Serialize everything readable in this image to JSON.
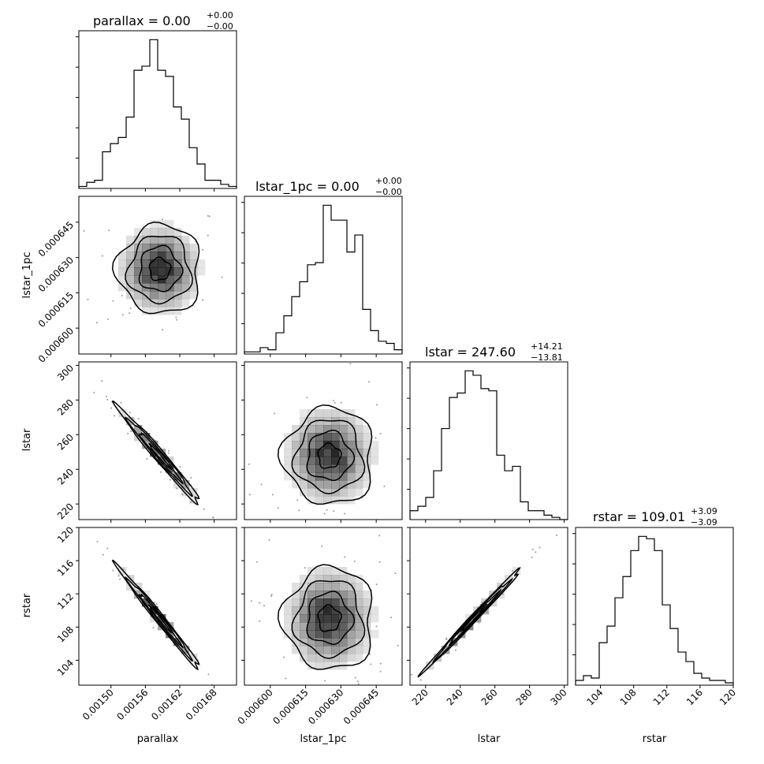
{
  "chart_data": {
    "type": "corner",
    "parameters": [
      "parallax",
      "lstar_1pc",
      "lstar",
      "rstar"
    ],
    "axis_labels": [
      "parallax",
      "lstar_1pc",
      "lstar",
      "rstar"
    ],
    "titles": [
      {
        "param": "parallax",
        "base": "parallax = 0.00",
        "plus": "+0.00",
        "minus": "−0.00"
      },
      {
        "param": "lstar_1pc",
        "base": "lstar_1pc = 0.00",
        "plus": "+0.00",
        "minus": "−0.00"
      },
      {
        "param": "lstar",
        "base": "lstar = 247.60",
        "plus": "+14.21",
        "minus": "−13.81"
      },
      {
        "param": "rstar",
        "base": "rstar = 109.01",
        "plus": "+3.09",
        "minus": "−3.09"
      }
    ],
    "ranges": [
      [
        0.001444,
        0.001719
      ],
      [
        0.000589,
        0.000656
      ],
      [
        211,
        302
      ],
      [
        101.0,
        120.0
      ]
    ],
    "ticks": [
      {
        "values": [
          0.0015,
          0.00156,
          0.00162,
          0.00168
        ],
        "labels": [
          "0.00150",
          "0.00156",
          "0.00162",
          "0.00168"
        ]
      },
      {
        "values": [
          0.0006,
          0.000615,
          0.00063,
          0.000645
        ],
        "labels": [
          "0.000600",
          "0.000615",
          "0.000630",
          "0.000645"
        ]
      },
      {
        "values": [
          220,
          240,
          260,
          280,
          300
        ],
        "labels": [
          "220",
          "240",
          "260",
          "280",
          "300"
        ]
      },
      {
        "values": [
          104,
          108,
          112,
          116,
          120
        ],
        "labels": [
          "104",
          "108",
          "112",
          "116",
          "120"
        ]
      }
    ],
    "histograms": [
      {
        "param": "parallax",
        "bins": 20,
        "counts": [
          1,
          3,
          4,
          18,
          22,
          25,
          35,
          58,
          60,
          73,
          58,
          55,
          40,
          34,
          20,
          12,
          4,
          4,
          2,
          1
        ]
      },
      {
        "param": "lstar_1pc",
        "bins": 20,
        "counts": [
          1,
          1,
          3,
          2,
          10,
          18,
          27,
          34,
          42,
          43,
          70,
          63,
          63,
          48,
          56,
          21,
          11,
          6,
          5,
          2
        ]
      },
      {
        "param": "lstar",
        "bins": 20,
        "counts": [
          4,
          6,
          10,
          22,
          41,
          55,
          57,
          67,
          65,
          59,
          58,
          29,
          22,
          24,
          8,
          4,
          4,
          2,
          1,
          0
        ]
      },
      {
        "param": "rstar",
        "bins": 20,
        "counts": [
          2,
          4,
          3,
          18,
          25,
          37,
          46,
          57,
          63,
          62,
          57,
          34,
          24,
          14,
          10,
          5,
          3,
          2,
          2,
          1
        ]
      }
    ],
    "pairs": [
      {
        "x": "parallax",
        "y": "lstar_1pc",
        "mean": [
          0.001585,
          0.000625
        ],
        "sd": [
          3.6e-05,
          9.5e-06
        ],
        "corr": 0.0
      },
      {
        "x": "parallax",
        "y": "lstar",
        "mean": [
          0.001585,
          247.6
        ],
        "sd": [
          3.6e-05,
          14.0
        ],
        "corr": -0.985
      },
      {
        "x": "lstar_1pc",
        "y": "lstar",
        "mean": [
          0.000625,
          247.6
        ],
        "sd": [
          9.5e-06,
          14.0
        ],
        "corr": 0.0
      },
      {
        "x": "parallax",
        "y": "rstar",
        "mean": [
          0.001585,
          109.01
        ],
        "sd": [
          3.6e-05,
          3.09
        ],
        "corr": -0.99
      },
      {
        "x": "lstar_1pc",
        "y": "rstar",
        "mean": [
          0.000625,
          109.01
        ],
        "sd": [
          9.5e-06,
          3.09
        ],
        "corr": 0.0
      },
      {
        "x": "lstar",
        "y": "rstar",
        "mean": [
          247.6,
          109.01
        ],
        "sd": [
          14.0,
          3.09
        ],
        "corr": 0.995
      }
    ],
    "contour_levels": [
      0.5,
      1.0,
      1.5,
      2.0
    ],
    "colors": {
      "line": "#000000",
      "density": "#000000",
      "background": "#ffffff"
    },
    "grid": false
  }
}
